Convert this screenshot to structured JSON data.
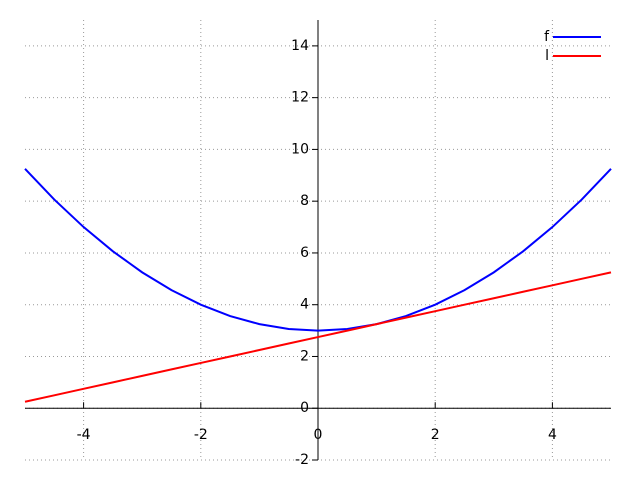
{
  "chart_data": {
    "type": "line",
    "x": [
      -5,
      -4.5,
      -4,
      -3.5,
      -3,
      -2.5,
      -2,
      -1.5,
      -1,
      -0.5,
      0,
      0.5,
      1,
      1.5,
      2,
      2.5,
      3,
      3.5,
      4,
      4.5,
      5
    ],
    "series": [
      {
        "name": "f",
        "color": "#0000ff",
        "values": [
          9.25,
          8.0625,
          7,
          6.0625,
          5.25,
          4.5625,
          4,
          3.5625,
          3.25,
          3.0625,
          3,
          3.0625,
          3.25,
          3.5625,
          4,
          4.5625,
          5.25,
          6.0625,
          7,
          8.0625,
          9.25
        ]
      },
      {
        "name": "l",
        "color": "#ff0000",
        "values": [
          0.25,
          0.5,
          0.75,
          1,
          1.25,
          1.5,
          1.75,
          2,
          2.25,
          2.5,
          2.75,
          3,
          3.25,
          3.5,
          3.75,
          4,
          4.25,
          4.5,
          4.75,
          5,
          5.25
        ]
      }
    ],
    "xlim": [
      -5,
      5
    ],
    "ylim": [
      -2,
      15
    ],
    "xticks": [
      -4,
      -2,
      0,
      2,
      4
    ],
    "yticks": [
      -2,
      0,
      2,
      4,
      6,
      8,
      10,
      12,
      14
    ],
    "grid": true,
    "legend": "top-right"
  }
}
